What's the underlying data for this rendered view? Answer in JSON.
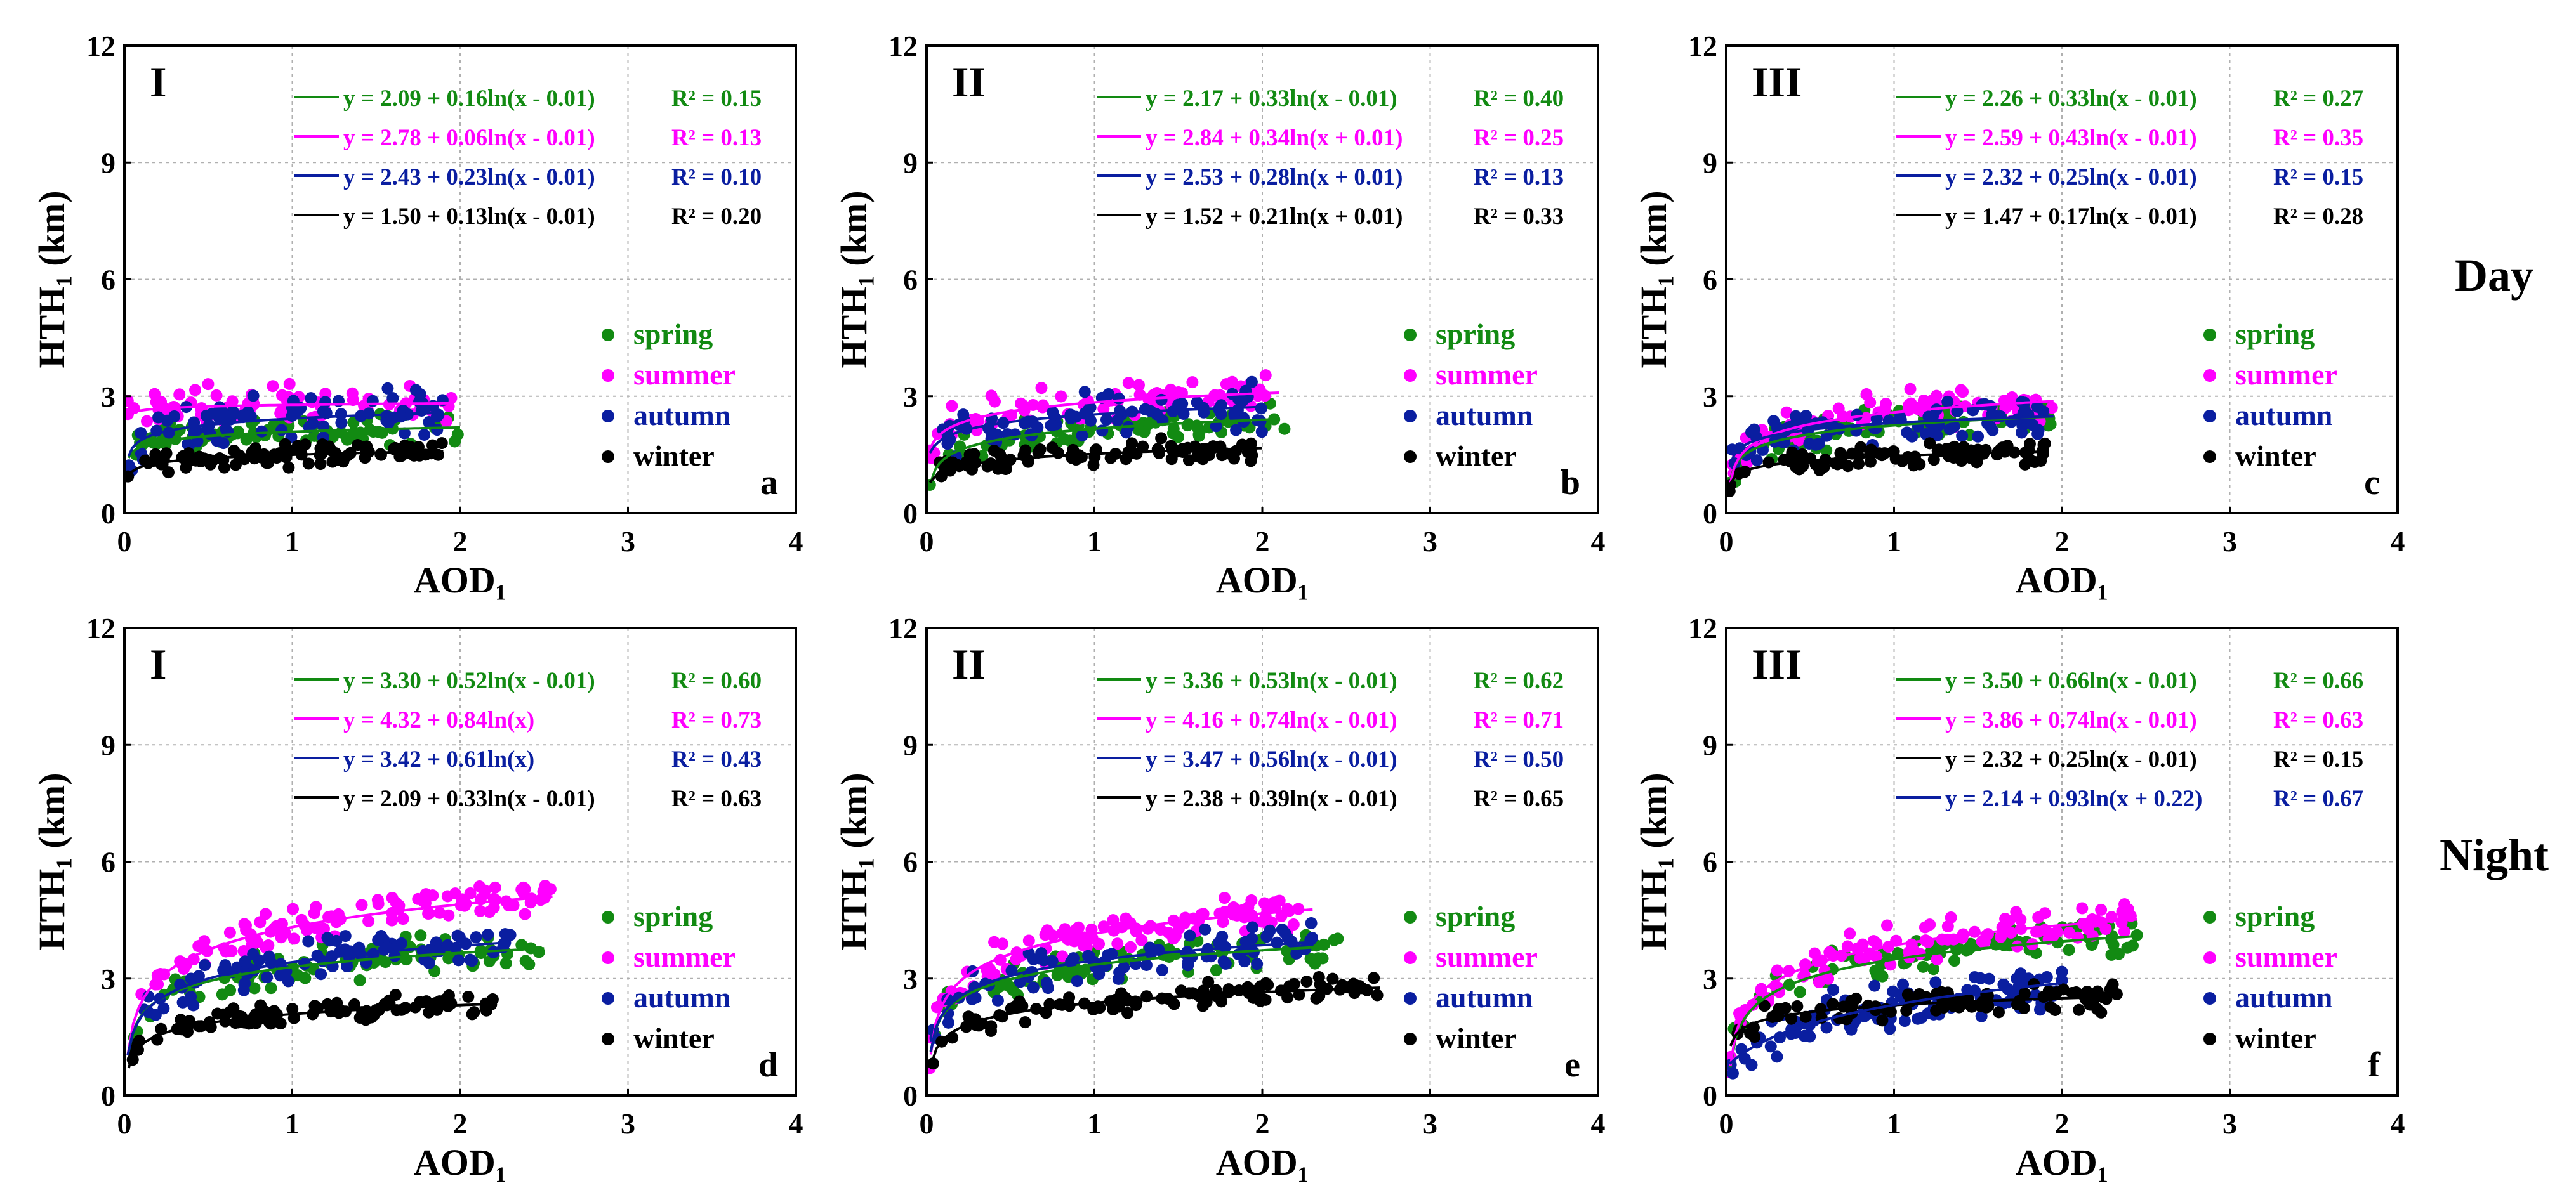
{
  "figure": {
    "row_labels": [
      "Day",
      "Night"
    ]
  },
  "legend_labels": [
    "spring",
    "summer",
    "autumn",
    "winter"
  ],
  "colors": {
    "spring": "#128a12",
    "summer": "#ff00ff",
    "autumn": "#0a1ea0",
    "winter": "#000000",
    "grid": "#b0b0b0"
  },
  "chart_data": [
    {
      "type": "scatter",
      "title": "",
      "roman": "I",
      "panel": "a",
      "xlabel": "AOD₁",
      "ylabel": "HTH₁ (km)",
      "xlim": [
        0,
        4
      ],
      "ylim": [
        0,
        12
      ],
      "xticks": [
        "0",
        "1",
        "2",
        "3",
        "4"
      ],
      "yticks": [
        "0",
        "3",
        "6",
        "9",
        "12"
      ],
      "fits": [
        {
          "season": "spring",
          "eq": "y = 2.09 + 0.16ln(x - 0.01)",
          "r2": "R² = 0.15",
          "a": 2.09,
          "b": 0.16,
          "c": -0.01,
          "xmax": 2.0
        },
        {
          "season": "summer",
          "eq": "y = 2.78 + 0.06ln(x - 0.01)",
          "r2": "R² = 0.13",
          "a": 2.78,
          "b": 0.06,
          "c": -0.01,
          "xmax": 1.95
        },
        {
          "season": "autumn",
          "eq": "y = 2.43 + 0.23ln(x - 0.01)",
          "r2": "R² = 0.10",
          "a": 2.43,
          "b": 0.23,
          "c": -0.01,
          "xmax": 1.9
        },
        {
          "season": "winter",
          "eq": "y = 1.50 + 0.13ln(x - 0.01)",
          "r2": "R² = 0.20",
          "a": 1.5,
          "b": 0.13,
          "c": -0.01,
          "xmax": 1.9
        }
      ],
      "scatter": {
        "spring": {
          "xmax": 2.0,
          "noise": 0.5,
          "n": 80,
          "seed": 11
        },
        "summer": {
          "xmax": 1.95,
          "noise": 0.6,
          "n": 75,
          "seed": 12
        },
        "autumn": {
          "xmax": 1.9,
          "noise": 0.7,
          "n": 85,
          "seed": 13
        },
        "winter": {
          "xmax": 1.9,
          "noise": 0.35,
          "n": 95,
          "seed": 14
        }
      }
    },
    {
      "type": "scatter",
      "title": "",
      "roman": "II",
      "panel": "b",
      "xlabel": "AOD₁",
      "ylabel": "HTH₁ (km)",
      "xlim": [
        0,
        4
      ],
      "ylim": [
        0,
        12
      ],
      "xticks": [
        "0",
        "1",
        "2",
        "3",
        "4"
      ],
      "yticks": [
        "0",
        "3",
        "6",
        "9",
        "12"
      ],
      "fits": [
        {
          "season": "spring",
          "eq": "y = 2.17 + 0.33ln(x - 0.01)",
          "r2": "R² = 0.40",
          "a": 2.17,
          "b": 0.33,
          "c": -0.01,
          "xmax": 2.1
        },
        {
          "season": "summer",
          "eq": "y = 2.84 + 0.34ln(x + 0.01)",
          "r2": "R² = 0.25",
          "a": 2.84,
          "b": 0.34,
          "c": 0.01,
          "xmax": 2.1
        },
        {
          "season": "autumn",
          "eq": "y = 2.53 + 0.28ln(x + 0.01)",
          "r2": "R² = 0.13",
          "a": 2.53,
          "b": 0.28,
          "c": 0.01,
          "xmax": 2.0
        },
        {
          "season": "winter",
          "eq": "y = 1.52 + 0.21ln(x + 0.01)",
          "r2": "R² = 0.33",
          "a": 1.52,
          "b": 0.21,
          "c": 0.01,
          "xmax": 2.0
        }
      ],
      "scatter": {
        "spring": {
          "xmax": 2.15,
          "noise": 0.5,
          "n": 80,
          "seed": 21
        },
        "summer": {
          "xmax": 2.1,
          "noise": 0.55,
          "n": 85,
          "seed": 22
        },
        "autumn": {
          "xmax": 2.0,
          "noise": 0.7,
          "n": 85,
          "seed": 23
        },
        "winter": {
          "xmax": 2.0,
          "noise": 0.35,
          "n": 95,
          "seed": 24
        }
      }
    },
    {
      "type": "scatter",
      "title": "",
      "roman": "III",
      "panel": "c",
      "xlabel": "AOD₁",
      "ylabel": "HTH₁ (km)",
      "xlim": [
        0,
        4
      ],
      "ylim": [
        0,
        12
      ],
      "xticks": [
        "0",
        "1",
        "2",
        "3",
        "4"
      ],
      "yticks": [
        "0",
        "3",
        "6",
        "9",
        "12"
      ],
      "fits": [
        {
          "season": "spring",
          "eq": "y = 2.26 + 0.33ln(x - 0.01)",
          "r2": "R² = 0.27",
          "a": 2.26,
          "b": 0.33,
          "c": -0.01,
          "xmax": 1.95
        },
        {
          "season": "summer",
          "eq": "y = 2.59 + 0.43ln(x - 0.01)",
          "r2": "R² = 0.35",
          "a": 2.59,
          "b": 0.43,
          "c": -0.01,
          "xmax": 1.95
        },
        {
          "season": "autumn",
          "eq": "y = 2.32 + 0.25ln(x - 0.01)",
          "r2": "R² = 0.15",
          "a": 2.32,
          "b": 0.25,
          "c": -0.01,
          "xmax": 1.95
        },
        {
          "season": "winter",
          "eq": "y = 1.47 + 0.17ln(x - 0.01)",
          "r2": "R² = 0.28",
          "a": 1.47,
          "b": 0.17,
          "c": -0.01,
          "xmax": 1.9
        }
      ],
      "scatter": {
        "spring": {
          "xmax": 1.95,
          "noise": 0.55,
          "n": 80,
          "seed": 31
        },
        "summer": {
          "xmax": 1.95,
          "noise": 0.6,
          "n": 85,
          "seed": 32
        },
        "autumn": {
          "xmax": 1.95,
          "noise": 0.65,
          "n": 90,
          "seed": 33
        },
        "winter": {
          "xmax": 1.9,
          "noise": 0.35,
          "n": 95,
          "seed": 34
        }
      }
    },
    {
      "type": "scatter",
      "title": "",
      "roman": "I",
      "panel": "d",
      "xlabel": "AOD₁",
      "ylabel": "HTH₁ (km)",
      "xlim": [
        0,
        4
      ],
      "ylim": [
        0,
        12
      ],
      "xticks": [
        "0",
        "1",
        "2",
        "3",
        "4"
      ],
      "yticks": [
        "0",
        "3",
        "6",
        "9",
        "12"
      ],
      "fits": [
        {
          "season": "spring",
          "eq": "y = 3.30 + 0.52ln(x - 0.01)",
          "r2": "R² = 0.60",
          "a": 3.3,
          "b": 0.52,
          "c": -0.01,
          "xmax": 2.5
        },
        {
          "season": "summer",
          "eq": "y = 4.32 + 0.84ln(x)",
          "r2": "R² = 0.73",
          "a": 4.32,
          "b": 0.84,
          "c": 0.0,
          "xmax": 2.55
        },
        {
          "season": "autumn",
          "eq": "y = 3.42 + 0.61ln(x)",
          "r2": "R² = 0.43",
          "a": 3.42,
          "b": 0.61,
          "c": 0.0,
          "xmax": 2.3
        },
        {
          "season": "winter",
          "eq": "y = 2.09 + 0.33ln(x - 0.01)",
          "r2": "R² = 0.63",
          "a": 2.09,
          "b": 0.33,
          "c": -0.01,
          "xmax": 2.2
        }
      ],
      "scatter": {
        "spring": {
          "xmax": 2.5,
          "noise": 0.55,
          "n": 85,
          "seed": 41
        },
        "summer": {
          "xmax": 2.55,
          "noise": 0.55,
          "n": 110,
          "seed": 42
        },
        "autumn": {
          "xmax": 2.3,
          "noise": 0.65,
          "n": 90,
          "seed": 43
        },
        "winter": {
          "xmax": 2.2,
          "noise": 0.35,
          "n": 100,
          "seed": 44
        }
      }
    },
    {
      "type": "scatter",
      "title": "",
      "roman": "II",
      "panel": "e",
      "xlabel": "AOD₁",
      "ylabel": "HTH₁ (km)",
      "xlim": [
        0,
        4
      ],
      "ylim": [
        0,
        12
      ],
      "xticks": [
        "0",
        "1",
        "2",
        "3",
        "4"
      ],
      "yticks": [
        "0",
        "3",
        "6",
        "9",
        "12"
      ],
      "fits": [
        {
          "season": "spring",
          "eq": "y = 3.36 + 0.53ln(x - 0.01)",
          "r2": "R² = 0.62",
          "a": 3.36,
          "b": 0.53,
          "c": -0.01,
          "xmax": 2.4
        },
        {
          "season": "summer",
          "eq": "y = 4.16 + 0.74ln(x - 0.01)",
          "r2": "R² = 0.71",
          "a": 4.16,
          "b": 0.74,
          "c": -0.01,
          "xmax": 2.3
        },
        {
          "season": "autumn",
          "eq": "y = 3.47 + 0.56ln(x - 0.01)",
          "r2": "R² = 0.50",
          "a": 3.47,
          "b": 0.56,
          "c": -0.01,
          "xmax": 2.3
        },
        {
          "season": "winter",
          "eq": "y = 2.38 + 0.39ln(x - 0.01)",
          "r2": "R² = 0.65",
          "a": 2.38,
          "b": 0.39,
          "c": -0.01,
          "xmax": 2.7
        }
      ],
      "scatter": {
        "spring": {
          "xmax": 2.45,
          "noise": 0.55,
          "n": 85,
          "seed": 51
        },
        "summer": {
          "xmax": 2.25,
          "noise": 0.55,
          "n": 110,
          "seed": 52
        },
        "autumn": {
          "xmax": 2.3,
          "noise": 0.65,
          "n": 90,
          "seed": 53
        },
        "winter": {
          "xmax": 2.7,
          "noise": 0.4,
          "n": 100,
          "seed": 54
        }
      }
    },
    {
      "type": "scatter",
      "title": "",
      "roman": "III",
      "panel": "f",
      "xlabel": "AOD₁",
      "ylabel": "HTH₁ (km)",
      "xlim": [
        0,
        4
      ],
      "ylim": [
        0,
        12
      ],
      "xticks": [
        "0",
        "1",
        "2",
        "3",
        "4"
      ],
      "yticks": [
        "0",
        "3",
        "6",
        "9",
        "12"
      ],
      "fits": [
        {
          "season": "spring",
          "eq": "y = 3.50 + 0.66ln(x - 0.01)",
          "r2": "R² = 0.66",
          "a": 3.5,
          "b": 0.66,
          "c": -0.01,
          "xmax": 2.45
        },
        {
          "season": "summer",
          "eq": "y = 3.86 + 0.74ln(x - 0.01)",
          "r2": "R² = 0.63",
          "a": 3.86,
          "b": 0.74,
          "c": -0.01,
          "xmax": 2.45
        },
        {
          "season": "winter",
          "eq": "y = 2.32 + 0.25ln(x - 0.01)",
          "r2": "R² = 0.15",
          "a": 2.32,
          "b": 0.25,
          "c": -0.01,
          "xmax": 2.35
        },
        {
          "season": "autumn",
          "eq": "y = 2.14 + 0.93ln(x + 0.22)",
          "r2": "R² = 0.67",
          "a": 2.14,
          "b": 0.93,
          "c": 0.22,
          "xmax": 2.0
        }
      ],
      "scatter": {
        "spring": {
          "xmax": 2.45,
          "noise": 0.6,
          "n": 85,
          "seed": 61
        },
        "summer": {
          "xmax": 2.45,
          "noise": 0.6,
          "n": 110,
          "seed": 62
        },
        "autumn": {
          "xmax": 2.0,
          "noise": 0.75,
          "n": 95,
          "seed": 63
        },
        "winter": {
          "xmax": 2.35,
          "noise": 0.45,
          "n": 100,
          "seed": 64
        }
      }
    }
  ]
}
